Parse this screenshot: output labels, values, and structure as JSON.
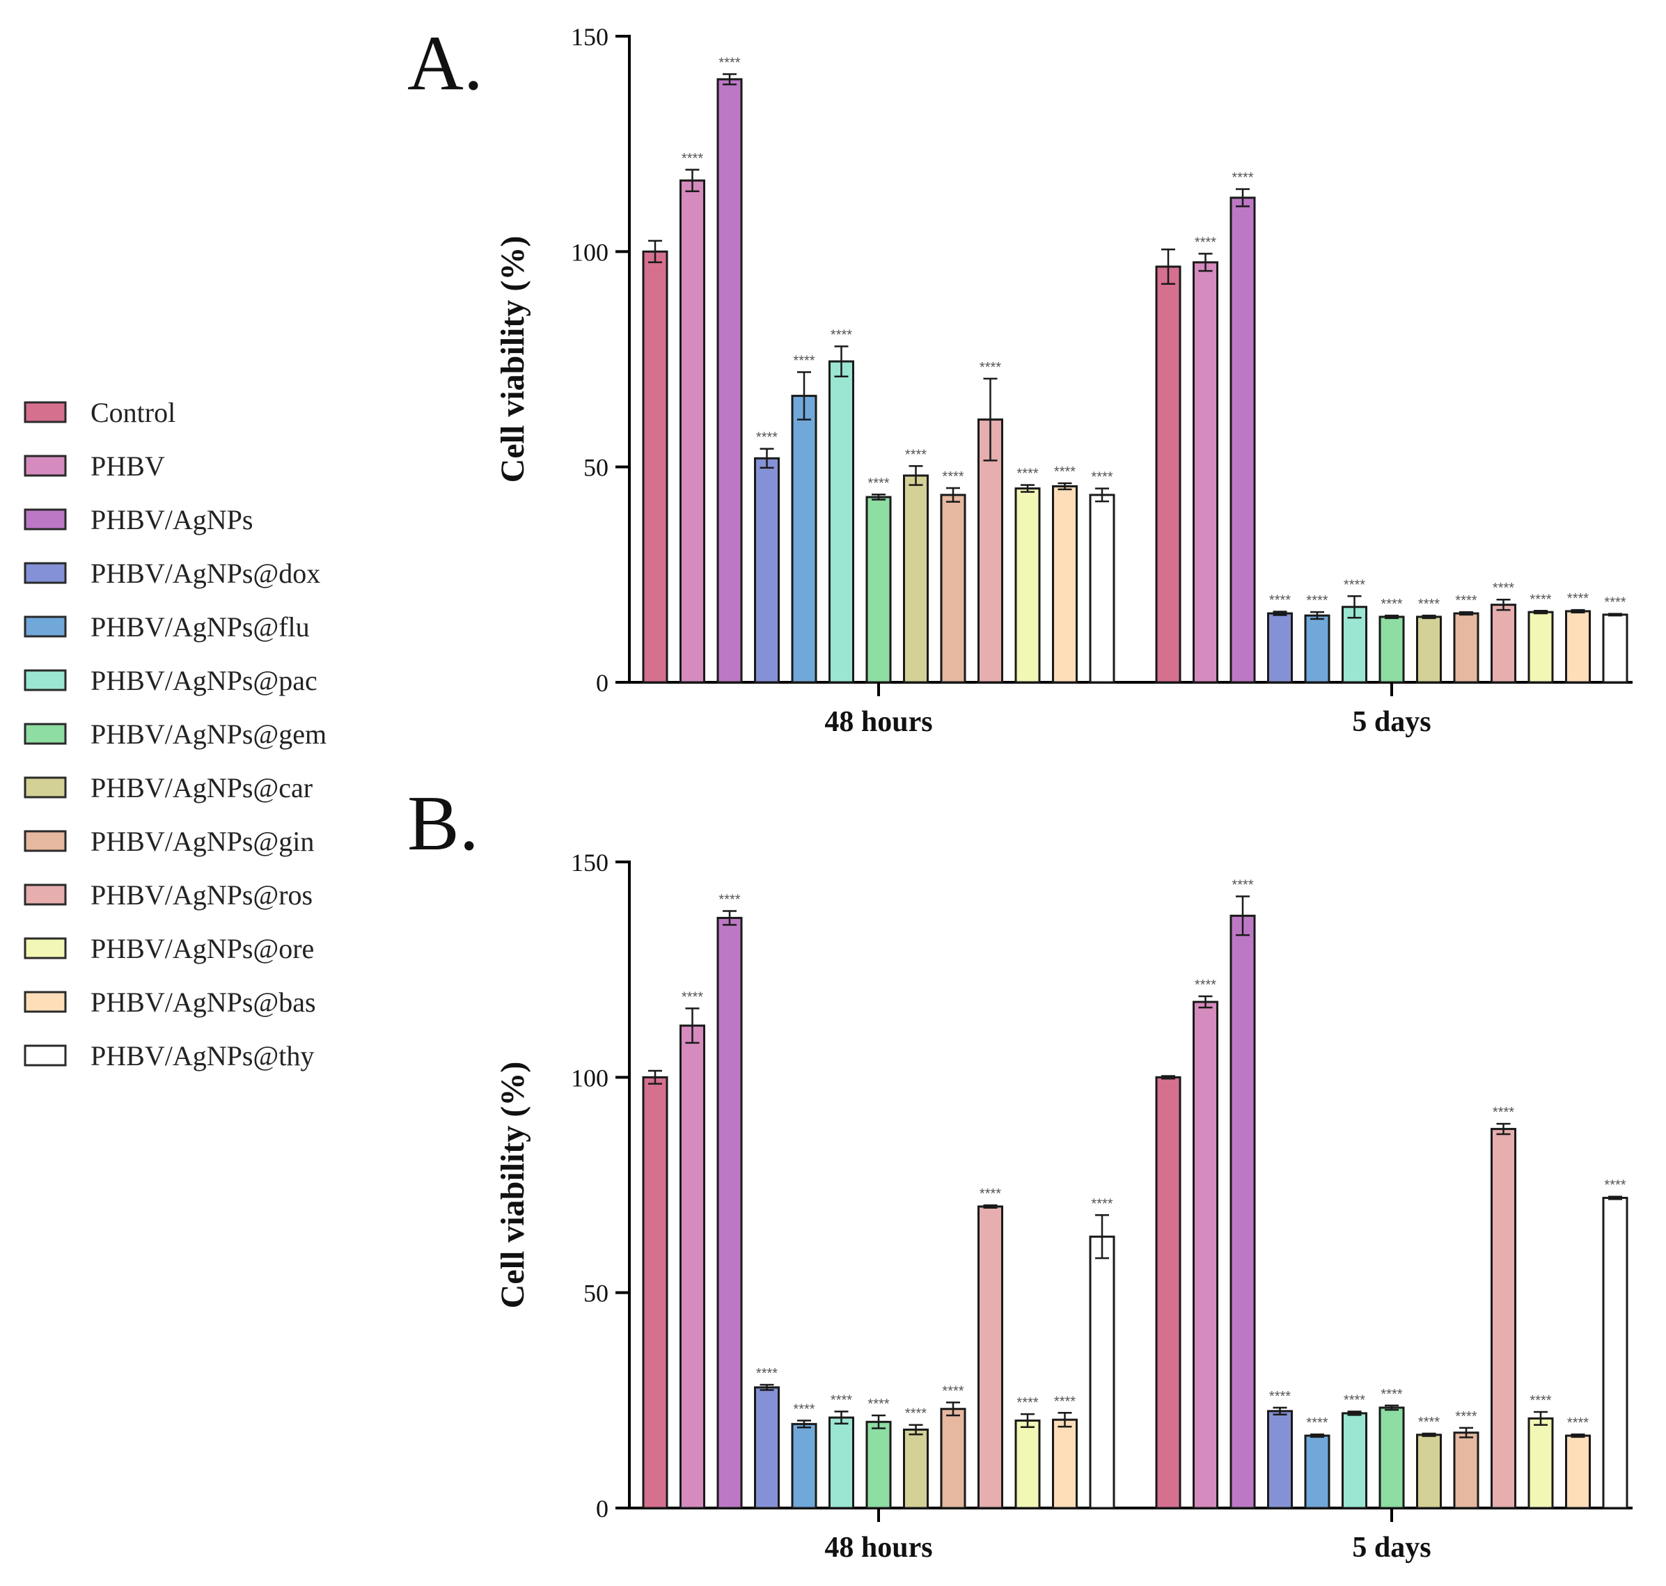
{
  "chart_data": [
    {
      "type": "bar",
      "panel_label": "A.",
      "ylabel": "Cell viability (%)",
      "ylim": [
        0,
        150
      ],
      "yticks": [
        0,
        50,
        100,
        150
      ],
      "categories": [
        "48 hours",
        "5 days"
      ],
      "series": [
        {
          "name": "Control",
          "values": [
            100,
            96.5
          ],
          "errors": [
            2.5,
            4
          ],
          "sig": [
            "",
            ""
          ]
        },
        {
          "name": "PHBV",
          "values": [
            116.5,
            97.5
          ],
          "errors": [
            2.5,
            2
          ],
          "sig": [
            "****",
            "****"
          ]
        },
        {
          "name": "PHBV/AgNPs",
          "values": [
            140,
            112.5
          ],
          "errors": [
            1.2,
            2
          ],
          "sig": [
            "****",
            "****"
          ]
        },
        {
          "name": "PHBV/AgNPs@dox",
          "values": [
            52,
            16
          ],
          "errors": [
            2.2,
            0.4
          ],
          "sig": [
            "****",
            "****"
          ]
        },
        {
          "name": "PHBV/AgNPs@flu",
          "values": [
            66.5,
            15.5
          ],
          "errors": [
            5.5,
            0.8
          ],
          "sig": [
            "****",
            "****"
          ]
        },
        {
          "name": "PHBV/AgNPs@pac",
          "values": [
            74.5,
            17.5
          ],
          "errors": [
            3.5,
            2.5
          ],
          "sig": [
            "****",
            "****"
          ]
        },
        {
          "name": "PHBV/AgNPs@gem",
          "values": [
            43,
            15.2
          ],
          "errors": [
            0.6,
            0.3
          ],
          "sig": [
            "****",
            "****"
          ]
        },
        {
          "name": "PHBV/AgNPs@car",
          "values": [
            48,
            15.2
          ],
          "errors": [
            2.2,
            0.3
          ],
          "sig": [
            "****",
            "****"
          ]
        },
        {
          "name": "PHBV/AgNPs@gin",
          "values": [
            43.5,
            16
          ],
          "errors": [
            1.6,
            0.3
          ],
          "sig": [
            "****",
            "****"
          ]
        },
        {
          "name": "PHBV/AgNPs@ros",
          "values": [
            61,
            18
          ],
          "errors": [
            9.5,
            1.2
          ],
          "sig": [
            "****",
            "****"
          ]
        },
        {
          "name": "PHBV/AgNPs@ore",
          "values": [
            45,
            16.3
          ],
          "errors": [
            0.8,
            0.3
          ],
          "sig": [
            "****",
            "****"
          ]
        },
        {
          "name": "PHBV/AgNPs@bas",
          "values": [
            45.5,
            16.5
          ],
          "errors": [
            0.7,
            0.3
          ],
          "sig": [
            "****",
            "****"
          ]
        },
        {
          "name": "PHBV/AgNPs@thy",
          "values": [
            43.5,
            15.7
          ],
          "errors": [
            1.5,
            0.2
          ],
          "sig": [
            "****",
            "****"
          ]
        }
      ]
    },
    {
      "type": "bar",
      "panel_label": "B.",
      "ylabel": "Cell viability (%)",
      "ylim": [
        0,
        150
      ],
      "yticks": [
        0,
        50,
        100,
        150
      ],
      "categories": [
        "48 hours",
        "5 days"
      ],
      "series": [
        {
          "name": "Control",
          "values": [
            100,
            100
          ],
          "errors": [
            1.5,
            0.3
          ],
          "sig": [
            "",
            ""
          ]
        },
        {
          "name": "PHBV",
          "values": [
            112,
            117.5
          ],
          "errors": [
            4,
            1.3
          ],
          "sig": [
            "****",
            "****"
          ]
        },
        {
          "name": "PHBV/AgNPs",
          "values": [
            137,
            137.5
          ],
          "errors": [
            1.6,
            4.5
          ],
          "sig": [
            "****",
            "****"
          ]
        },
        {
          "name": "PHBV/AgNPs@dox",
          "values": [
            28,
            22.5
          ],
          "errors": [
            0.6,
            0.8
          ],
          "sig": [
            "****",
            "****"
          ]
        },
        {
          "name": "PHBV/AgNPs@flu",
          "values": [
            19.5,
            16.8
          ],
          "errors": [
            0.8,
            0.3
          ],
          "sig": [
            "****",
            "****"
          ]
        },
        {
          "name": "PHBV/AgNPs@pac",
          "values": [
            21,
            22
          ],
          "errors": [
            1.4,
            0.4
          ],
          "sig": [
            "****",
            "****"
          ]
        },
        {
          "name": "PHBV/AgNPs@gem",
          "values": [
            20,
            23.3
          ],
          "errors": [
            1.5,
            0.5
          ],
          "sig": [
            "****",
            "****"
          ]
        },
        {
          "name": "PHBV/AgNPs@car",
          "values": [
            18.2,
            17
          ],
          "errors": [
            1.1,
            0.3
          ],
          "sig": [
            "****",
            "****"
          ]
        },
        {
          "name": "PHBV/AgNPs@gin",
          "values": [
            23,
            17.5
          ],
          "errors": [
            1.5,
            1.1
          ],
          "sig": [
            "****",
            "****"
          ]
        },
        {
          "name": "PHBV/AgNPs@ros",
          "values": [
            70,
            88
          ],
          "errors": [
            0.3,
            1.2
          ],
          "sig": [
            "****",
            "****"
          ]
        },
        {
          "name": "PHBV/AgNPs@ore",
          "values": [
            20.3,
            20.8
          ],
          "errors": [
            1.5,
            1.5
          ],
          "sig": [
            "****",
            "****"
          ]
        },
        {
          "name": "PHBV/AgNPs@bas",
          "values": [
            20.5,
            16.8
          ],
          "errors": [
            1.6,
            0.3
          ],
          "sig": [
            "****",
            "****"
          ]
        },
        {
          "name": "PHBV/AgNPs@thy",
          "values": [
            63,
            72
          ],
          "errors": [
            5,
            0.3
          ],
          "sig": [
            "****",
            "****"
          ]
        }
      ]
    }
  ],
  "legend": {
    "position": "left",
    "entries": [
      {
        "label": "Control",
        "color": "#D6708F"
      },
      {
        "label": "PHBV",
        "color": "#D58BBE"
      },
      {
        "label": "PHBV/AgNPs",
        "color": "#BC78C5"
      },
      {
        "label": "PHBV/AgNPs@dox",
        "color": "#8591D6"
      },
      {
        "label": "PHBV/AgNPs@flu",
        "color": "#71A8DA"
      },
      {
        "label": "PHBV/AgNPs@pac",
        "color": "#9AE6D3"
      },
      {
        "label": "PHBV/AgNPs@gem",
        "color": "#8EDDA3"
      },
      {
        "label": "PHBV/AgNPs@car",
        "color": "#D3D195"
      },
      {
        "label": "PHBV/AgNPs@gin",
        "color": "#E6B8A0"
      },
      {
        "label": "PHBV/AgNPs@ros",
        "color": "#E6AEAE"
      },
      {
        "label": "PHBV/AgNPs@ore",
        "color": "#F2F7B5"
      },
      {
        "label": "PHBV/AgNPs@bas",
        "color": "#FDDEB9"
      },
      {
        "label": "PHBV/AgNPs@thy",
        "color": "#FFFFFF"
      }
    ]
  }
}
